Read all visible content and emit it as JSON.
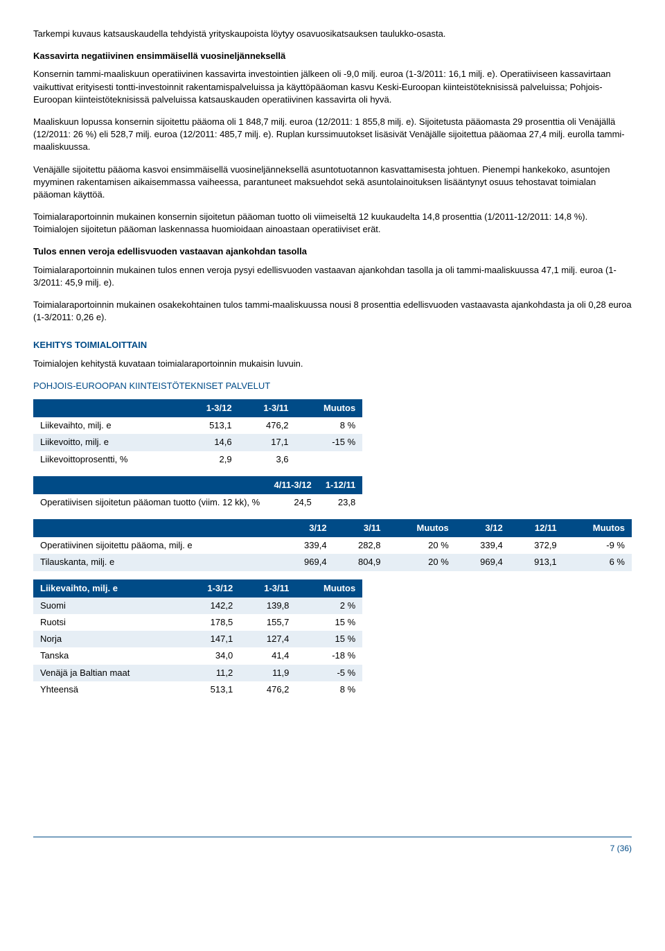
{
  "paragraphs": {
    "p1": "Tarkempi kuvaus katsauskaudella tehdyistä yrityskaupoista löytyy osavuosikatsauksen taulukko-osasta.",
    "p2": "Kassavirta negatiivinen ensimmäisellä vuosineljänneksellä",
    "p3": "Konsernin tammi-maaliskuun operatiivinen kassavirta investointien jälkeen oli -9,0 milj. euroa (1-3/2011: 16,1 milj. e). Operatiiviseen kassavirtaan vaikuttivat erityisesti tontti-investoinnit rakentamispalveluissa ja käyttöpääoman kasvu Keski-Euroopan kiinteistöteknisissä palveluissa; Pohjois-Euroopan kiinteistöteknisissä palveluissa katsauskauden operatiivinen kassavirta oli hyvä.",
    "p4": "Maaliskuun lopussa konsernin sijoitettu pääoma oli 1 848,7 milj. euroa (12/2011: 1 855,8 milj. e). Sijoitetusta pääomasta 29 prosenttia oli Venäjällä (12/2011: 26 %) eli 528,7 milj. euroa (12/2011: 485,7 milj. e). Ruplan kurssimuutokset lisäsivät Venäjälle sijoitettua pääomaa 27,4 milj. eurolla tammi-maaliskuussa.",
    "p5": "Venäjälle sijoitettu pääoma kasvoi ensimmäisellä vuosineljänneksellä asuntotuotannon kasvattamisesta johtuen. Pienempi hankekoko, asuntojen myyminen rakentamisen aikaisemmassa vaiheessa, parantuneet maksuehdot sekä asuntolainoituksen lisääntynyt osuus tehostavat toimialan pääoman käyttöä.",
    "p6": "Toimialaraportoinnin mukainen konsernin sijoitetun pääoman tuotto oli viimeiseltä 12 kuukaudelta 14,8 prosenttia (1/2011-12/2011: 14,8 %). Toimialojen sijoitetun pääoman laskennassa huomioidaan ainoastaan operatiiviset erät.",
    "p7": "Tulos ennen veroja edellisvuoden vastaavan ajankohdan tasolla",
    "p8": "Toimialaraportoinnin mukainen tulos ennen veroja pysyi edellisvuoden vastaavan ajankohdan tasolla ja oli tammi-maaliskuussa 47,1 milj. euroa (1-3/2011: 45,9 milj. e).",
    "p9": "Toimialaraportoinnin mukainen osakekohtainen tulos tammi-maaliskuussa nousi 8 prosenttia edellisvuoden vastaavasta ajankohdasta ja oli 0,28 euroa (1-3/2011: 0,26 e).",
    "s1": "KEHITYS TOIMIALOITTAIN",
    "s2": "Toimialojen kehitystä kuvataan toimialaraportoinnin mukaisin luvuin.",
    "s3": "POHJOIS-EUROOPAN KIINTEISTÖTEKNISET PALVELUT"
  },
  "table1": {
    "headers": [
      "",
      "1-3/12",
      "1-3/11",
      "Muutos"
    ],
    "rows": [
      [
        "Liikevaihto, milj. e",
        "513,1",
        "476,2",
        "8 %"
      ],
      [
        "Liikevoitto, milj. e",
        "14,6",
        "17,1",
        "-15 %"
      ],
      [
        "Liikevoittoprosentti, %",
        "2,9",
        "3,6",
        ""
      ]
    ]
  },
  "table2": {
    "headers": [
      "",
      "4/11-3/12",
      "1-12/11"
    ],
    "rows": [
      [
        "Operatiivisen sijoitetun pääoman tuotto (viim. 12 kk), %",
        "24,5",
        "23,8"
      ]
    ]
  },
  "table3": {
    "headers": [
      "",
      "3/12",
      "3/11",
      "Muutos",
      "3/12",
      "12/11",
      "Muutos"
    ],
    "rows": [
      [
        "Operatiivinen sijoitettu pääoma, milj. e",
        "339,4",
        "282,8",
        "20 %",
        "339,4",
        "372,9",
        "-9 %"
      ],
      [
        "Tilauskanta, milj. e",
        "969,4",
        "804,9",
        "20 %",
        "969,4",
        "913,1",
        "6 %"
      ]
    ]
  },
  "table4": {
    "headers": [
      "Liikevaihto, milj. e",
      "1-3/12",
      "1-3/11",
      "Muutos"
    ],
    "rows": [
      [
        "Suomi",
        "142,2",
        "139,8",
        "2 %"
      ],
      [
        "Ruotsi",
        "178,5",
        "155,7",
        "15 %"
      ],
      [
        "Norja",
        "147,1",
        "127,4",
        "15 %"
      ],
      [
        "Tanska",
        "34,0",
        "41,4",
        "-18 %"
      ],
      [
        "Venäjä ja Baltian maat",
        "11,2",
        "11,9",
        "-5 %"
      ],
      [
        "Yhteensä",
        "513,1",
        "476,2",
        "8 %"
      ]
    ]
  },
  "footer": "7 (36)"
}
